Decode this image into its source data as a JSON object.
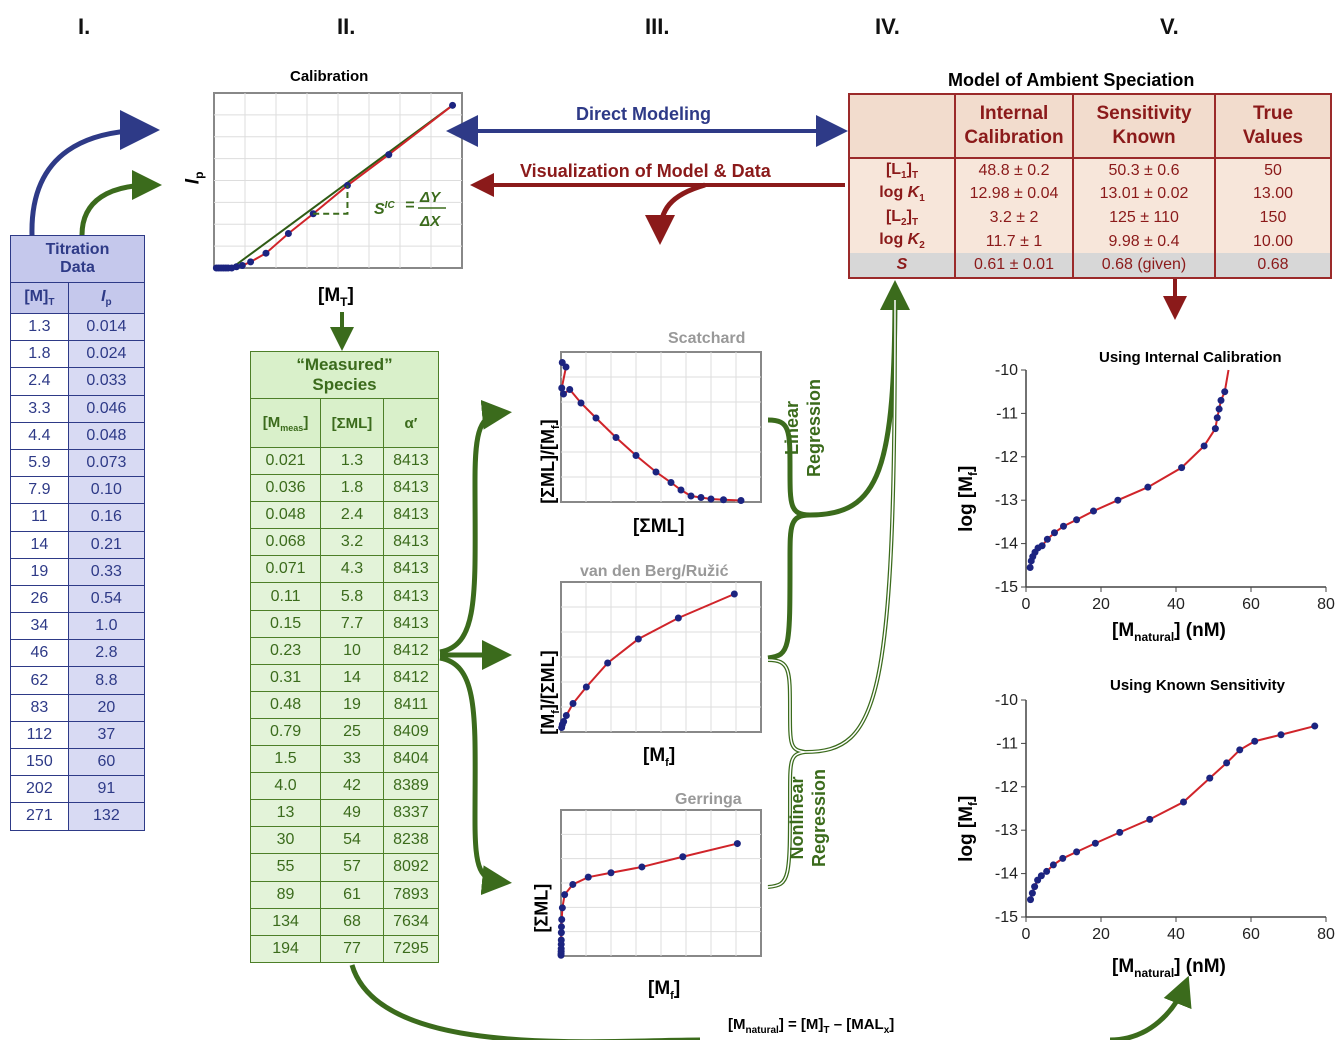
{
  "columns": [
    "I.",
    "II.",
    "III.",
    "IV.",
    "V."
  ],
  "titration": {
    "title_line1": "Titration",
    "title_line2": "Data",
    "col1_header": "[M]T",
    "col2_header": "Ip",
    "rows": [
      [
        "1.3",
        "0.014"
      ],
      [
        "1.8",
        "0.024"
      ],
      [
        "2.4",
        "0.033"
      ],
      [
        "3.3",
        "0.046"
      ],
      [
        "4.4",
        "0.048"
      ],
      [
        "5.9",
        "0.073"
      ],
      [
        "7.9",
        "0.10"
      ],
      [
        "11",
        "0.16"
      ],
      [
        "14",
        "0.21"
      ],
      [
        "19",
        "0.33"
      ],
      [
        "26",
        "0.54"
      ],
      [
        "34",
        "1.0"
      ],
      [
        "46",
        "2.8"
      ],
      [
        "62",
        "8.8"
      ],
      [
        "83",
        "20"
      ],
      [
        "112",
        "37"
      ],
      [
        "150",
        "60"
      ],
      [
        "202",
        "91"
      ],
      [
        "271",
        "132"
      ]
    ]
  },
  "calibration": {
    "title": "Calibration",
    "y_label": "Ip",
    "x_label": "[MT]",
    "formula_s": "SIC",
    "formula_num": "ΔY",
    "formula_den": "ΔX",
    "points": [
      [
        0.2,
        0.0
      ],
      [
        0.4,
        0.0
      ],
      [
        0.6,
        0.0
      ],
      [
        0.8,
        0.0
      ],
      [
        1.0,
        0.0
      ],
      [
        1.2,
        0.0
      ],
      [
        1.5,
        0.0
      ],
      [
        1.9,
        0.01
      ],
      [
        2.4,
        0.02
      ],
      [
        3.1,
        0.05
      ],
      [
        4.4,
        0.12
      ],
      [
        6.3,
        0.28
      ],
      [
        8.4,
        0.44
      ],
      [
        11.3,
        0.67
      ],
      [
        14.8,
        0.92
      ],
      [
        20.2,
        1.32
      ]
    ]
  },
  "measured": {
    "title_line1": "“Measured”",
    "title_line2": "Species",
    "headers": [
      "[Mmeas]",
      "[ΣML]",
      "α′"
    ],
    "rows": [
      [
        "0.021",
        "1.3",
        "8413"
      ],
      [
        "0.036",
        "1.8",
        "8413"
      ],
      [
        "0.048",
        "2.4",
        "8413"
      ],
      [
        "0.068",
        "3.2",
        "8413"
      ],
      [
        "0.071",
        "4.3",
        "8413"
      ],
      [
        "0.11",
        "5.8",
        "8413"
      ],
      [
        "0.15",
        "7.7",
        "8413"
      ],
      [
        "0.23",
        "10",
        "8412"
      ],
      [
        "0.31",
        "14",
        "8412"
      ],
      [
        "0.48",
        "19",
        "8411"
      ],
      [
        "0.79",
        "25",
        "8409"
      ],
      [
        "1.5",
        "33",
        "8404"
      ],
      [
        "4.0",
        "42",
        "8389"
      ],
      [
        "13",
        "49",
        "8337"
      ],
      [
        "30",
        "54",
        "8238"
      ],
      [
        "55",
        "57",
        "8092"
      ],
      [
        "89",
        "61",
        "7893"
      ],
      [
        "134",
        "68",
        "7634"
      ],
      [
        "194",
        "77",
        "7295"
      ]
    ]
  },
  "arrows": {
    "direct_modeling": "Direct Modeling",
    "visualization": "Visualization of Model & Data",
    "linear_line1": "Linear",
    "linear_line2": "Regression",
    "nonlinear_line1": "Nonlinear",
    "nonlinear_line2": "Regression",
    "bottom_formula": "[Mnatural] = [M]T – [MALx]"
  },
  "panels": {
    "scatchard": {
      "title": "Scatchard",
      "ylabel": "[ΣML]/[Mf]",
      "xlabel": "[ΣML]",
      "points": [
        [
          0.5,
          9.3
        ],
        [
          2.0,
          9.0
        ],
        [
          0.3,
          7.6
        ],
        [
          1.0,
          7.2
        ],
        [
          3.5,
          7.5
        ],
        [
          8,
          6.6
        ],
        [
          14,
          5.6
        ],
        [
          22,
          4.3
        ],
        [
          30,
          3.1
        ],
        [
          38,
          2.0
        ],
        [
          44,
          1.3
        ],
        [
          48,
          0.8
        ],
        [
          52,
          0.4
        ],
        [
          56,
          0.3
        ],
        [
          60,
          0.2
        ],
        [
          65,
          0.15
        ],
        [
          72,
          0.1
        ]
      ]
    },
    "vandenberg": {
      "title": "van den Berg/Ružić",
      "ylabel": "[Mf]/[ΣML]",
      "xlabel": "[Mf]",
      "points": [
        [
          0.5,
          0.3
        ],
        [
          1,
          0.5
        ],
        [
          2,
          0.7
        ],
        [
          4,
          1.1
        ],
        [
          9,
          1.9
        ],
        [
          19,
          3.0
        ],
        [
          35,
          4.6
        ],
        [
          58,
          6.2
        ],
        [
          88,
          7.6
        ],
        [
          130,
          9.2
        ]
      ]
    },
    "gerringa": {
      "title": "Gerringa",
      "ylabel": "[ΣML]",
      "xlabel": "[Mf]",
      "points": [
        [
          0.05,
          0.5
        ],
        [
          0.1,
          1.5
        ],
        [
          0.15,
          3
        ],
        [
          0.2,
          5
        ],
        [
          0.25,
          8
        ],
        [
          0.3,
          11
        ],
        [
          0.4,
          16
        ],
        [
          0.5,
          20
        ],
        [
          0.8,
          25
        ],
        [
          1.5,
          33
        ],
        [
          4,
          42
        ],
        [
          13,
          49
        ],
        [
          30,
          54
        ],
        [
          55,
          57
        ],
        [
          89,
          61
        ],
        [
          134,
          68
        ],
        [
          194,
          77
        ]
      ]
    }
  },
  "model": {
    "title": "Model  of Ambient Speciation",
    "headers": [
      "",
      "Internal Calibration",
      "Sensitivity Known",
      "True Values"
    ],
    "rows": [
      [
        "[L1]T",
        "48.8 ± 0.2",
        "50.3 ± 0.6",
        "50"
      ],
      [
        "log K1",
        "12.98 ± 0.04",
        "13.01 ± 0.02",
        "13.00"
      ],
      [
        "[L2]T",
        "3.2 ± 2",
        "125 ± 110",
        "150"
      ],
      [
        "log K2",
        "11.7 ± 1",
        "9.98 ± 0.4",
        "10.00"
      ],
      [
        "S",
        "0.61 ± 0.01",
        "0.68 (given)",
        "0.68"
      ]
    ]
  },
  "chart_data": [
    {
      "type": "scatter",
      "title": "Using Internal Calibration",
      "xlabel": "[Mnatural] (nM)",
      "ylabel": "log [Mf]",
      "xlim": [
        0,
        80
      ],
      "ylim": [
        -15,
        -10
      ],
      "xticks": [
        "0",
        "20",
        "40",
        "60",
        "80"
      ],
      "yticks": [
        "-10",
        "-11",
        "-12",
        "-13",
        "-14",
        "-15"
      ],
      "x": [
        1.1,
        1.4,
        1.8,
        2.4,
        3.2,
        4.3,
        5.7,
        7.6,
        10,
        13.5,
        18,
        24.5,
        32.5,
        41.5,
        47.5,
        50.5,
        51,
        51.5,
        52,
        53
      ],
      "y": [
        -14.55,
        -14.4,
        -14.3,
        -14.2,
        -14.1,
        -14.05,
        -13.9,
        -13.75,
        -13.6,
        -13.45,
        -13.25,
        -13.0,
        -12.7,
        -12.25,
        -11.75,
        -11.35,
        -11.1,
        -10.9,
        -10.7,
        -10.5
      ]
    },
    {
      "type": "scatter",
      "title": "Using Known Sensitivity",
      "xlabel": "[Mnatural] (nM)",
      "ylabel": "log [Mf]",
      "xlim": [
        0,
        80
      ],
      "ylim": [
        -15,
        -10
      ],
      "xticks": [
        "0",
        "20",
        "40",
        "60",
        "80"
      ],
      "yticks": [
        "-10",
        "-11",
        "-12",
        "-13",
        "-14",
        "-15"
      ],
      "x": [
        1.2,
        1.7,
        2.3,
        3.1,
        4.1,
        5.5,
        7.3,
        9.8,
        13.5,
        18.5,
        25,
        33,
        42,
        49,
        53.5,
        57,
        61,
        68,
        77
      ],
      "y": [
        -14.6,
        -14.45,
        -14.3,
        -14.15,
        -14.05,
        -13.95,
        -13.8,
        -13.65,
        -13.5,
        -13.3,
        -13.05,
        -12.75,
        -12.35,
        -11.8,
        -11.45,
        -11.15,
        -10.95,
        -10.8,
        -10.6
      ]
    }
  ]
}
